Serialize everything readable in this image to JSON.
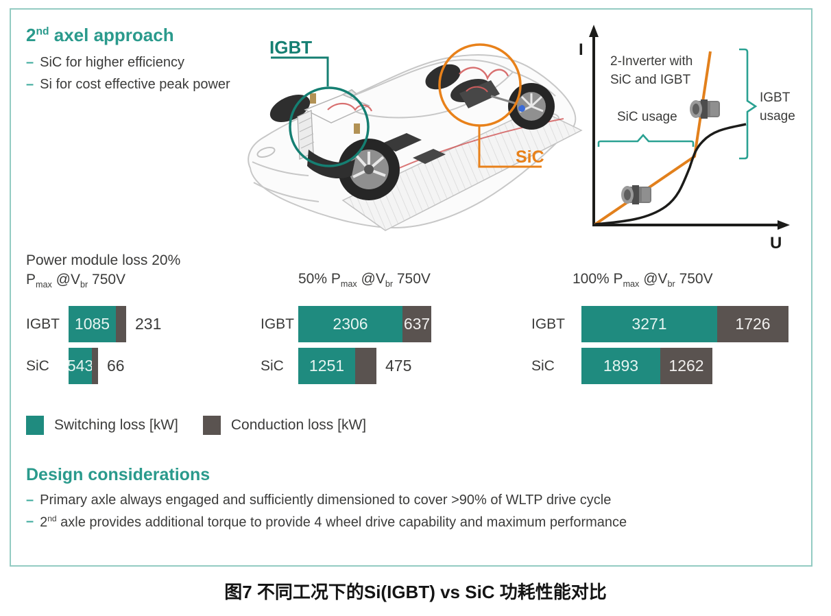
{
  "headline": {
    "parts": [
      {
        "t": "2"
      },
      {
        "t": "nd",
        "sup": true
      },
      {
        "t": " axel approach"
      }
    ],
    "bullets": [
      {
        "dash": "–",
        "text": "SiC for higher efficiency"
      },
      {
        "dash": "–",
        "text": "Si for cost effective peak power"
      }
    ]
  },
  "car": {
    "igbt_label": "IGBT",
    "sic_label": "SiC"
  },
  "iu_graph": {
    "y_axis_label": "I",
    "x_axis_label": "U",
    "annotation_line1": "2-Inverter with",
    "annotation_line2": "SiC and IGBT",
    "sic_usage_label": "SiC usage",
    "igbt_usage_line1": "IGBT",
    "igbt_usage_line2": "usage",
    "curves": [
      {
        "name": "SiC inverter characteristic",
        "color": "#e2801c",
        "shape": "steep straight line from origin, kink near top"
      },
      {
        "name": "IGBT inverter characteristic",
        "color": "#1c1c1a",
        "shape": "flat then steep knee curve crossing the orange line"
      }
    ]
  },
  "chart_data": [
    {
      "type": "bar",
      "orientation": "horizontal",
      "title_text": "Power module loss 20% Pmax @Vbr 750V",
      "title_rich": [
        [
          {
            "t": "Power module loss 20%"
          }
        ],
        [
          {
            "t": "P"
          },
          {
            "t": "max",
            "sub": true
          },
          {
            "t": " @V"
          },
          {
            "t": "br",
            "sub": true
          },
          {
            "t": " 750V"
          }
        ]
      ],
      "categories": [
        "IGBT",
        "SiC"
      ],
      "series": [
        {
          "name": "Switching loss [kW]",
          "values": [
            1085,
            543
          ]
        },
        {
          "name": "Conduction loss [kW]",
          "values": [
            231,
            66
          ]
        }
      ],
      "conduction_label_inside": [
        false,
        false
      ],
      "unit": "kW"
    },
    {
      "type": "bar",
      "orientation": "horizontal",
      "title_text": "50% Pmax @Vbr 750V",
      "title_rich": [
        [
          {
            "t": "50% P"
          },
          {
            "t": "max",
            "sub": true
          },
          {
            "t": " @V"
          },
          {
            "t": "br",
            "sub": true
          },
          {
            "t": " 750V"
          }
        ]
      ],
      "categories": [
        "IGBT",
        "SiC"
      ],
      "series": [
        {
          "name": "Switching loss [kW]",
          "values": [
            2306,
            1251
          ]
        },
        {
          "name": "Conduction loss [kW]",
          "values": [
            637,
            475
          ]
        }
      ],
      "conduction_label_inside": [
        true,
        false
      ],
      "unit": "kW"
    },
    {
      "type": "bar",
      "orientation": "horizontal",
      "title_text": "100% Pmax @Vbr 750V",
      "title_rich": [
        [
          {
            "t": "100% P"
          },
          {
            "t": "max",
            "sub": true
          },
          {
            "t": " @V"
          },
          {
            "t": "br",
            "sub": true
          },
          {
            "t": " 750V"
          }
        ]
      ],
      "categories": [
        "IGBT",
        "SiC"
      ],
      "series": [
        {
          "name": "Switching loss [kW]",
          "values": [
            3271,
            1893
          ]
        },
        {
          "name": "Conduction loss [kW]",
          "values": [
            1726,
            1262
          ]
        }
      ],
      "conduction_label_inside": [
        true,
        true
      ],
      "unit": "kW"
    }
  ],
  "legend": [
    {
      "label": "Switching loss [kW]",
      "color_key": "teal"
    },
    {
      "label": "Conduction loss [kW]",
      "color_key": "conduction_gray"
    }
  ],
  "design": {
    "heading": "Design considerations",
    "bullets": [
      {
        "dash": "–",
        "parts": [
          {
            "t": "Primary axle always engaged and sufficiently dimensioned to cover >90% of WLTP drive cycle"
          }
        ]
      },
      {
        "dash": "–",
        "parts": [
          {
            "t": "2"
          },
          {
            "t": "nd",
            "sup": true
          },
          {
            "t": " axle provides additional torque to provide 4 wheel drive capability and maximum performance"
          }
        ]
      }
    ]
  },
  "caption": "图7 不同工况下的Si(IGBT) vs SiC 功耗性能对比",
  "colors": {
    "teal": "#1f8b7f",
    "teal_heading": "#2a9a8c",
    "teal_annotation": "#157f72",
    "teal_brace": "#2aa192",
    "orange": "#e8811a",
    "conduction_gray": "#5a5350",
    "text": "#3b3b3a",
    "panel_border": "#93cbc2",
    "axis_black": "#1c1c1a"
  }
}
